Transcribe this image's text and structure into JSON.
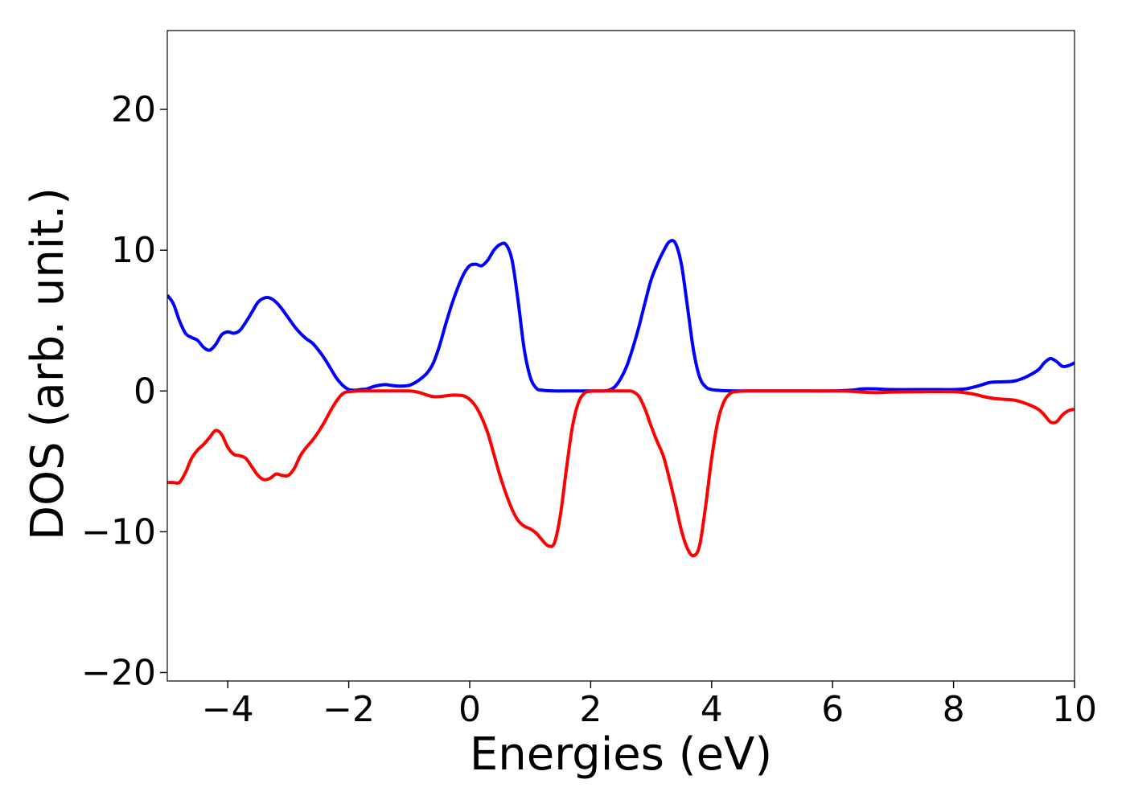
{
  "chart_data": {
    "type": "line",
    "title": "",
    "xlabel": "Energies (eV)",
    "ylabel": "DOS (arb. unit.)",
    "xlim": [
      -5,
      10
    ],
    "ylim": [
      -20.6,
      25.6
    ],
    "x_ticks": [
      -4,
      -2,
      0,
      2,
      4,
      6,
      8,
      10
    ],
    "x_tick_labels": [
      "−4",
      "−2",
      "0",
      "2",
      "4",
      "6",
      "8",
      "10"
    ],
    "y_ticks": [
      -20,
      -10,
      0,
      10,
      20
    ],
    "y_tick_labels": [
      "−20",
      "−10",
      "0",
      "10",
      "20"
    ],
    "grid": false,
    "legend": "none",
    "series": [
      {
        "color": "#0000ff",
        "points": [
          [
            -5.0,
            6.8
          ],
          [
            -4.9,
            6.2
          ],
          [
            -4.8,
            5.0
          ],
          [
            -4.7,
            4.1
          ],
          [
            -4.6,
            3.8
          ],
          [
            -4.5,
            3.6
          ],
          [
            -4.4,
            3.1
          ],
          [
            -4.3,
            2.9
          ],
          [
            -4.2,
            3.3
          ],
          [
            -4.1,
            4.0
          ],
          [
            -4.0,
            4.2
          ],
          [
            -3.9,
            4.1
          ],
          [
            -3.8,
            4.3
          ],
          [
            -3.7,
            4.9
          ],
          [
            -3.6,
            5.6
          ],
          [
            -3.5,
            6.3
          ],
          [
            -3.4,
            6.6
          ],
          [
            -3.3,
            6.6
          ],
          [
            -3.2,
            6.3
          ],
          [
            -3.1,
            5.8
          ],
          [
            -3.0,
            5.2
          ],
          [
            -2.9,
            4.6
          ],
          [
            -2.8,
            4.1
          ],
          [
            -2.7,
            3.7
          ],
          [
            -2.6,
            3.4
          ],
          [
            -2.5,
            2.9
          ],
          [
            -2.4,
            2.3
          ],
          [
            -2.3,
            1.6
          ],
          [
            -2.2,
            0.9
          ],
          [
            -2.1,
            0.4
          ],
          [
            -2.0,
            0.1
          ],
          [
            -1.9,
            0.05
          ],
          [
            -1.8,
            0.1
          ],
          [
            -1.7,
            0.15
          ],
          [
            -1.6,
            0.3
          ],
          [
            -1.5,
            0.4
          ],
          [
            -1.4,
            0.45
          ],
          [
            -1.3,
            0.4
          ],
          [
            -1.2,
            0.35
          ],
          [
            -1.1,
            0.35
          ],
          [
            -1.0,
            0.4
          ],
          [
            -0.9,
            0.6
          ],
          [
            -0.8,
            0.9
          ],
          [
            -0.7,
            1.3
          ],
          [
            -0.6,
            2.0
          ],
          [
            -0.5,
            3.2
          ],
          [
            -0.4,
            4.7
          ],
          [
            -0.3,
            6.1
          ],
          [
            -0.2,
            7.3
          ],
          [
            -0.1,
            8.3
          ],
          [
            0.0,
            8.9
          ],
          [
            0.1,
            9.0
          ],
          [
            0.2,
            8.9
          ],
          [
            0.3,
            9.3
          ],
          [
            0.4,
            10.0
          ],
          [
            0.5,
            10.4
          ],
          [
            0.6,
            10.4
          ],
          [
            0.7,
            9.3
          ],
          [
            0.8,
            6.4
          ],
          [
            0.9,
            3.0
          ],
          [
            1.0,
            1.0
          ],
          [
            1.1,
            0.2
          ],
          [
            1.2,
            0.05
          ],
          [
            1.4,
            0.0
          ],
          [
            1.6,
            0.0
          ],
          [
            1.8,
            0.0
          ],
          [
            2.0,
            0.0
          ],
          [
            2.2,
            0.0
          ],
          [
            2.3,
            0.05
          ],
          [
            2.4,
            0.3
          ],
          [
            2.5,
            0.9
          ],
          [
            2.6,
            1.8
          ],
          [
            2.7,
            3.1
          ],
          [
            2.8,
            4.6
          ],
          [
            2.9,
            6.3
          ],
          [
            3.0,
            7.9
          ],
          [
            3.1,
            9.0
          ],
          [
            3.2,
            9.9
          ],
          [
            3.3,
            10.6
          ],
          [
            3.4,
            10.5
          ],
          [
            3.5,
            9.0
          ],
          [
            3.6,
            6.0
          ],
          [
            3.7,
            2.9
          ],
          [
            3.8,
            1.0
          ],
          [
            3.9,
            0.3
          ],
          [
            4.0,
            0.1
          ],
          [
            4.2,
            0.02
          ],
          [
            4.5,
            0.0
          ],
          [
            5.0,
            0.0
          ],
          [
            5.5,
            0.0
          ],
          [
            6.0,
            0.0
          ],
          [
            6.3,
            0.05
          ],
          [
            6.5,
            0.15
          ],
          [
            6.7,
            0.15
          ],
          [
            7.0,
            0.1
          ],
          [
            7.5,
            0.1
          ],
          [
            7.8,
            0.1
          ],
          [
            8.0,
            0.1
          ],
          [
            8.2,
            0.15
          ],
          [
            8.4,
            0.35
          ],
          [
            8.6,
            0.6
          ],
          [
            8.8,
            0.65
          ],
          [
            9.0,
            0.7
          ],
          [
            9.2,
            1.0
          ],
          [
            9.4,
            1.5
          ],
          [
            9.5,
            2.0
          ],
          [
            9.6,
            2.3
          ],
          [
            9.7,
            2.1
          ],
          [
            9.8,
            1.75
          ],
          [
            9.9,
            1.8
          ],
          [
            10.0,
            2.0
          ]
        ]
      },
      {
        "color": "#ff0000",
        "points": [
          [
            -5.0,
            -6.5
          ],
          [
            -4.9,
            -6.5
          ],
          [
            -4.8,
            -6.5
          ],
          [
            -4.7,
            -5.8
          ],
          [
            -4.6,
            -4.8
          ],
          [
            -4.5,
            -4.2
          ],
          [
            -4.4,
            -3.8
          ],
          [
            -4.3,
            -3.3
          ],
          [
            -4.2,
            -2.8
          ],
          [
            -4.1,
            -3.1
          ],
          [
            -4.0,
            -4.0
          ],
          [
            -3.9,
            -4.5
          ],
          [
            -3.8,
            -4.6
          ],
          [
            -3.7,
            -4.8
          ],
          [
            -3.6,
            -5.4
          ],
          [
            -3.5,
            -6.0
          ],
          [
            -3.4,
            -6.3
          ],
          [
            -3.3,
            -6.2
          ],
          [
            -3.2,
            -5.9
          ],
          [
            -3.1,
            -6.0
          ],
          [
            -3.0,
            -6.0
          ],
          [
            -2.9,
            -5.5
          ],
          [
            -2.8,
            -4.6
          ],
          [
            -2.7,
            -4.0
          ],
          [
            -2.6,
            -3.5
          ],
          [
            -2.5,
            -2.9
          ],
          [
            -2.4,
            -2.2
          ],
          [
            -2.3,
            -1.4
          ],
          [
            -2.2,
            -0.7
          ],
          [
            -2.1,
            -0.2
          ],
          [
            -2.0,
            -0.05
          ],
          [
            -1.8,
            0.0
          ],
          [
            -1.5,
            0.0
          ],
          [
            -1.2,
            0.0
          ],
          [
            -1.0,
            0.0
          ],
          [
            -0.9,
            -0.05
          ],
          [
            -0.8,
            -0.15
          ],
          [
            -0.7,
            -0.3
          ],
          [
            -0.6,
            -0.4
          ],
          [
            -0.5,
            -0.4
          ],
          [
            -0.4,
            -0.35
          ],
          [
            -0.3,
            -0.3
          ],
          [
            -0.2,
            -0.3
          ],
          [
            -0.1,
            -0.35
          ],
          [
            0.0,
            -0.6
          ],
          [
            0.1,
            -1.1
          ],
          [
            0.2,
            -1.9
          ],
          [
            0.3,
            -3.0
          ],
          [
            0.4,
            -4.5
          ],
          [
            0.5,
            -6.0
          ],
          [
            0.6,
            -7.3
          ],
          [
            0.7,
            -8.4
          ],
          [
            0.8,
            -9.2
          ],
          [
            0.9,
            -9.6
          ],
          [
            1.0,
            -9.8
          ],
          [
            1.1,
            -10.1
          ],
          [
            1.2,
            -10.6
          ],
          [
            1.3,
            -11.0
          ],
          [
            1.4,
            -10.8
          ],
          [
            1.5,
            -8.8
          ],
          [
            1.6,
            -5.5
          ],
          [
            1.7,
            -2.5
          ],
          [
            1.8,
            -0.8
          ],
          [
            1.9,
            -0.15
          ],
          [
            2.0,
            -0.02
          ],
          [
            2.2,
            0.0
          ],
          [
            2.4,
            0.0
          ],
          [
            2.6,
            0.0
          ],
          [
            2.7,
            -0.05
          ],
          [
            2.8,
            -0.4
          ],
          [
            2.9,
            -1.3
          ],
          [
            3.0,
            -2.5
          ],
          [
            3.1,
            -3.6
          ],
          [
            3.2,
            -4.6
          ],
          [
            3.3,
            -6.2
          ],
          [
            3.4,
            -8.0
          ],
          [
            3.5,
            -9.9
          ],
          [
            3.6,
            -11.2
          ],
          [
            3.7,
            -11.7
          ],
          [
            3.8,
            -11.0
          ],
          [
            3.9,
            -8.2
          ],
          [
            4.0,
            -4.8
          ],
          [
            4.1,
            -2.2
          ],
          [
            4.2,
            -0.8
          ],
          [
            4.3,
            -0.2
          ],
          [
            4.4,
            -0.05
          ],
          [
            4.6,
            0.0
          ],
          [
            5.0,
            0.0
          ],
          [
            5.5,
            0.0
          ],
          [
            6.0,
            0.0
          ],
          [
            6.3,
            -0.02
          ],
          [
            6.5,
            -0.08
          ],
          [
            6.7,
            -0.12
          ],
          [
            7.0,
            -0.08
          ],
          [
            7.5,
            -0.05
          ],
          [
            8.0,
            -0.05
          ],
          [
            8.3,
            -0.2
          ],
          [
            8.5,
            -0.4
          ],
          [
            8.7,
            -0.55
          ],
          [
            9.0,
            -0.65
          ],
          [
            9.2,
            -0.9
          ],
          [
            9.4,
            -1.3
          ],
          [
            9.5,
            -1.7
          ],
          [
            9.6,
            -2.2
          ],
          [
            9.7,
            -2.2
          ],
          [
            9.8,
            -1.7
          ],
          [
            9.9,
            -1.4
          ],
          [
            10.0,
            -1.3
          ]
        ]
      }
    ]
  }
}
